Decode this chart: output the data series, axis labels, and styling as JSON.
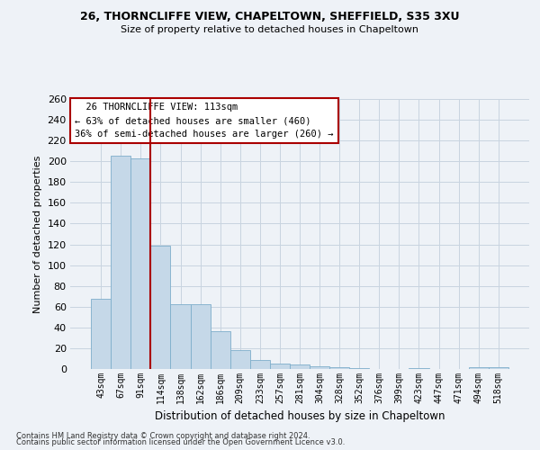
{
  "title_line1": "26, THORNCLIFFE VIEW, CHAPELTOWN, SHEFFIELD, S35 3XU",
  "title_line2": "Size of property relative to detached houses in Chapeltown",
  "xlabel": "Distribution of detached houses by size in Chapeltown",
  "ylabel": "Number of detached properties",
  "bar_color": "#c5d8e8",
  "bar_edge_color": "#7eaecb",
  "vline_color": "#aa0000",
  "vline_x_index": 3,
  "categories": [
    "43sqm",
    "67sqm",
    "91sqm",
    "114sqm",
    "138sqm",
    "162sqm",
    "186sqm",
    "209sqm",
    "233sqm",
    "257sqm",
    "281sqm",
    "304sqm",
    "328sqm",
    "352sqm",
    "376sqm",
    "399sqm",
    "423sqm",
    "447sqm",
    "471sqm",
    "494sqm",
    "518sqm"
  ],
  "values": [
    68,
    205,
    203,
    119,
    62,
    62,
    36,
    18,
    9,
    5,
    4,
    3,
    2,
    1,
    0,
    0,
    1,
    0,
    0,
    2,
    2
  ],
  "annotation_line1": "  26 THORNCLIFFE VIEW: 113sqm  ",
  "annotation_line2": "← 63% of detached houses are smaller (460)",
  "annotation_line3": "36% of semi-detached houses are larger (260) →",
  "annotation_box_color": "white",
  "annotation_box_edge": "#aa0000",
  "bg_color": "#eef2f7",
  "grid_color": "#c8d4e0",
  "footer_line1": "Contains HM Land Registry data © Crown copyright and database right 2024.",
  "footer_line2": "Contains public sector information licensed under the Open Government Licence v3.0.",
  "ylim": [
    0,
    260
  ],
  "yticks": [
    0,
    20,
    40,
    60,
    80,
    100,
    120,
    140,
    160,
    180,
    200,
    220,
    240,
    260
  ]
}
